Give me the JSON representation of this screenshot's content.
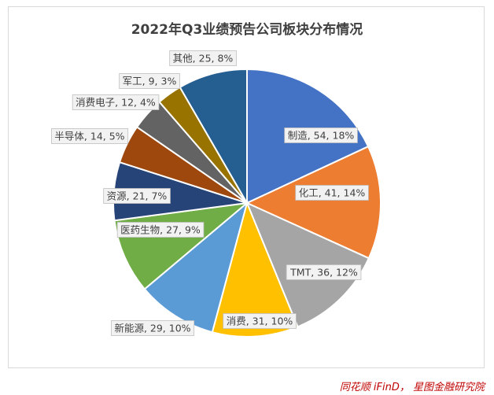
{
  "chart_data": {
    "type": "pie",
    "title": "2022年Q3业绩预告公司板块分布情况",
    "slices": [
      {
        "name": "制造",
        "value": 54,
        "pct": "18%",
        "color": "#4472C4"
      },
      {
        "name": "化工",
        "value": 41,
        "pct": "14%",
        "color": "#ED7D31"
      },
      {
        "name": "TMT",
        "value": 36,
        "pct": "12%",
        "color": "#A5A5A5"
      },
      {
        "name": "消费",
        "value": 31,
        "pct": "10%",
        "color": "#FFC000"
      },
      {
        "name": "新能源",
        "value": 29,
        "pct": "10%",
        "color": "#5B9BD5"
      },
      {
        "name": "医药生物",
        "value": 27,
        "pct": "9%",
        "color": "#70AD47"
      },
      {
        "name": "资源",
        "value": 21,
        "pct": "7%",
        "color": "#264478"
      },
      {
        "name": "半导体",
        "value": 14,
        "pct": "5%",
        "color": "#9E480E"
      },
      {
        "name": "消费电子",
        "value": 12,
        "pct": "4%",
        "color": "#636363"
      },
      {
        "name": "军工",
        "value": 9,
        "pct": "3%",
        "color": "#997300"
      },
      {
        "name": "其他",
        "value": 25,
        "pct": "8%",
        "color": "#255E91"
      }
    ]
  },
  "source_note": "同花顺 iFinD， 星图金融研究院"
}
